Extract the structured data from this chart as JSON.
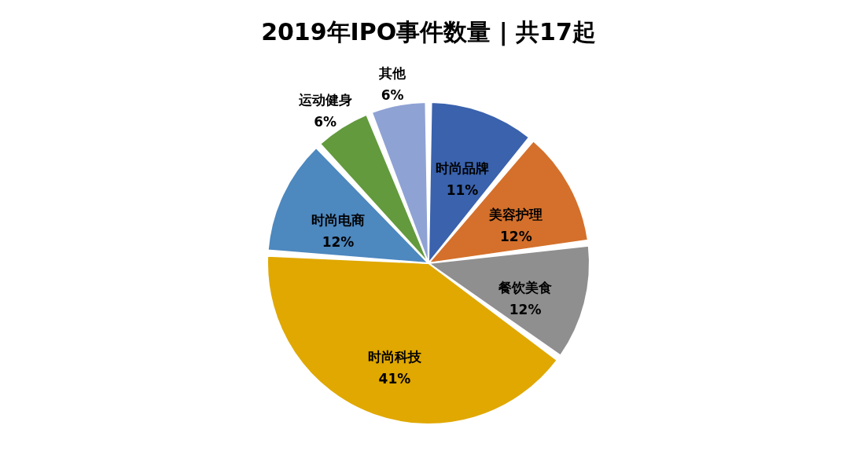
{
  "chart_data": {
    "type": "pie",
    "title": "2019年IPO事件数量 | 共17起",
    "categories": [
      "时尚品牌",
      "美容护理",
      "餐饮美食",
      "时尚科技",
      "时尚电商",
      "运动健身",
      "其他"
    ],
    "values": [
      11,
      12,
      12,
      41,
      12,
      6,
      6
    ],
    "value_labels": [
      "11%",
      "12%",
      "12%",
      "41%",
      "12%",
      "6%",
      "6%"
    ],
    "colors": [
      "#3a62ad",
      "#d4702b",
      "#8f8f8f",
      "#e0a800",
      "#4d88bf",
      "#629a3d",
      "#8fa2d4"
    ]
  }
}
